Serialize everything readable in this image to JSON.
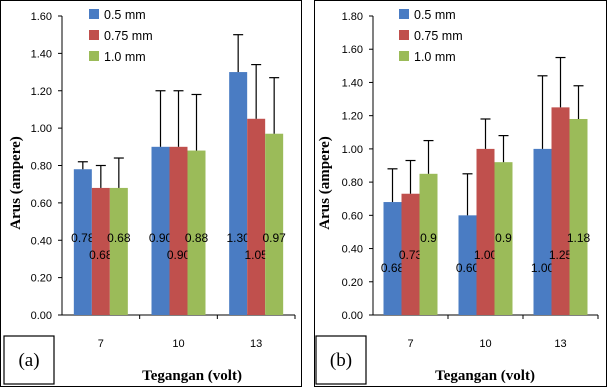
{
  "colors": {
    "series": [
      "#4a7cc3",
      "#c0504d",
      "#9bbb59"
    ],
    "error_bar": "#000000",
    "border": "#000000"
  },
  "chart_data": [
    {
      "type": "bar",
      "panel_label": "(a)",
      "categories": [
        "7",
        "10",
        "13"
      ],
      "xlabel": "Tegangan (volt)",
      "ylabel": "Arus (ampere)",
      "ylim": [
        0,
        1.6
      ],
      "yticks": [
        "0.00",
        "0.20",
        "0.40",
        "0.60",
        "0.80",
        "1.00",
        "1.20",
        "1.40",
        "1.60"
      ],
      "legend_position": "top-left",
      "grid": false,
      "series": [
        {
          "name": "0.5 mm",
          "values": [
            0.78,
            0.9,
            1.3
          ],
          "errors": [
            0.04,
            0.3,
            0.2
          ],
          "labels": [
            "0.78",
            "0.90",
            "1.30"
          ]
        },
        {
          "name": "0.75 mm",
          "values": [
            0.68,
            0.9,
            1.05
          ],
          "errors": [
            0.12,
            0.3,
            0.29
          ],
          "labels": [
            "0.68",
            "0.90",
            "1.05"
          ]
        },
        {
          "name": "1.0 mm",
          "values": [
            0.68,
            0.88,
            0.97
          ],
          "errors": [
            0.16,
            0.3,
            0.3
          ],
          "labels": [
            "0.68",
            "0.88",
            "0.97"
          ]
        }
      ]
    },
    {
      "type": "bar",
      "panel_label": "(b)",
      "categories": [
        "7",
        "10",
        "13"
      ],
      "xlabel": "Tegangan (volt)",
      "ylabel": "Arus (ampere)",
      "ylim": [
        0,
        1.8
      ],
      "yticks": [
        "0.00",
        "0.20",
        "0.40",
        "0.60",
        "0.80",
        "1.00",
        "1.20",
        "1.40",
        "1.60",
        "1.80"
      ],
      "legend_position": "top-left",
      "grid": false,
      "series": [
        {
          "name": "0.5 mm",
          "values": [
            0.68,
            0.6,
            1.0
          ],
          "errors": [
            0.2,
            0.25,
            0.44
          ],
          "labels": [
            "0.68",
            "0.60",
            "1.00"
          ]
        },
        {
          "name": "0.75 mm",
          "values": [
            0.73,
            1.0,
            1.25
          ],
          "errors": [
            0.2,
            0.18,
            0.3
          ],
          "labels": [
            "0.73",
            "1.00",
            "1.25"
          ]
        },
        {
          "name": "1.0 mm",
          "values": [
            0.85,
            0.92,
            1.18
          ],
          "errors": [
            0.2,
            0.16,
            0.2
          ],
          "labels": [
            "0.9",
            "0.9",
            "1.18"
          ]
        }
      ]
    }
  ]
}
